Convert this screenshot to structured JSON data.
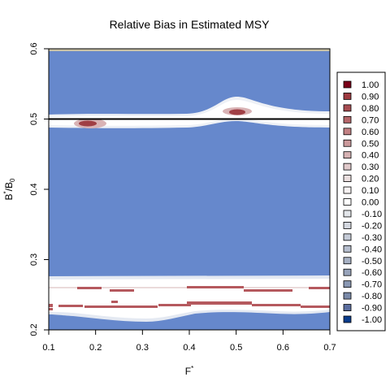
{
  "chart_data": {
    "type": "heatmap",
    "title": "Relative Bias in Estimated MSY",
    "xlabel": "F",
    "xlabel_sup": "*",
    "ylabel_parts": [
      "B",
      "*",
      "/B",
      "0"
    ],
    "xlim": [
      0.1,
      0.7
    ],
    "ylim": [
      0.2,
      0.6
    ],
    "x_ticks": [
      "0.1",
      "0.2",
      "0.3",
      "0.4",
      "0.5",
      "0.6",
      "0.7"
    ],
    "y_ticks": [
      "0.2",
      "0.3",
      "0.4",
      "0.5",
      "0.6"
    ],
    "reference_line_y": 0.5,
    "legend_labels": [
      "1.00",
      "0.90",
      "0.80",
      "0.70",
      "0.60",
      "0.50",
      "0.40",
      "0.30",
      "0.20",
      "0.10",
      "0.00",
      "-0.10",
      "-0.20",
      "-0.30",
      "-0.40",
      "-0.50",
      "-0.60",
      "-0.70",
      "-0.80",
      "-0.90",
      "-1.00"
    ],
    "legend_colors": [
      "#7a0018",
      "#9e3a40",
      "#a84d52",
      "#b6676b",
      "#c28083",
      "#cc9a9c",
      "#d6b2b3",
      "#e0c9ca",
      "#ebdfdf",
      "#f7f2f2",
      "#ffffff",
      "#e3e6ea",
      "#d4d8e0",
      "#c5cbd7",
      "#b6bece",
      "#a7b1c4",
      "#98a4bb",
      "#8997b2",
      "#7a8aa9",
      "#5b6e9f",
      "#0a3c8c"
    ],
    "background_value": -0.8,
    "background_color": "#6688cc",
    "band_color": "#ffffff",
    "bias_color": "#b5595e",
    "strong_bias_color": "#a03f45"
  }
}
